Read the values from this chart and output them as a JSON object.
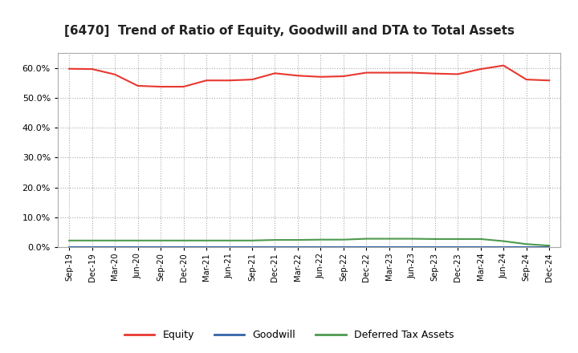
{
  "title": "[6470]  Trend of Ratio of Equity, Goodwill and DTA to Total Assets",
  "x_labels": [
    "Sep-19",
    "Dec-19",
    "Mar-20",
    "Jun-20",
    "Sep-20",
    "Dec-20",
    "Mar-21",
    "Jun-21",
    "Sep-21",
    "Dec-21",
    "Mar-22",
    "Jun-22",
    "Sep-22",
    "Dec-22",
    "Mar-23",
    "Jun-23",
    "Sep-23",
    "Dec-23",
    "Mar-24",
    "Jun-24",
    "Sep-24",
    "Dec-24"
  ],
  "equity": [
    0.597,
    0.596,
    0.578,
    0.54,
    0.537,
    0.537,
    0.558,
    0.558,
    0.561,
    0.582,
    0.574,
    0.57,
    0.572,
    0.584,
    0.584,
    0.584,
    0.581,
    0.579,
    0.596,
    0.608,
    0.561,
    0.558
  ],
  "goodwill": [
    0.0,
    0.0,
    0.0,
    0.0,
    0.0,
    0.0,
    0.0,
    0.0,
    0.0,
    0.0,
    0.0,
    0.0,
    0.0,
    0.0,
    0.0,
    0.0,
    0.0,
    0.0,
    0.0,
    0.0,
    0.0,
    0.0
  ],
  "dta": [
    0.022,
    0.022,
    0.022,
    0.022,
    0.022,
    0.022,
    0.022,
    0.022,
    0.022,
    0.024,
    0.024,
    0.025,
    0.025,
    0.028,
    0.028,
    0.028,
    0.027,
    0.027,
    0.027,
    0.02,
    0.01,
    0.005
  ],
  "equity_color": "#e8382f",
  "goodwill_color": "#3465a6",
  "dta_color": "#4e9a4e",
  "background_color": "#ffffff",
  "grid_color": "#aaaaaa",
  "ylim": [
    0.0,
    0.65
  ],
  "yticks": [
    0.0,
    0.1,
    0.2,
    0.3,
    0.4,
    0.5,
    0.6
  ],
  "legend_labels": [
    "Equity",
    "Goodwill",
    "Deferred Tax Assets"
  ],
  "title_fontsize": 11
}
